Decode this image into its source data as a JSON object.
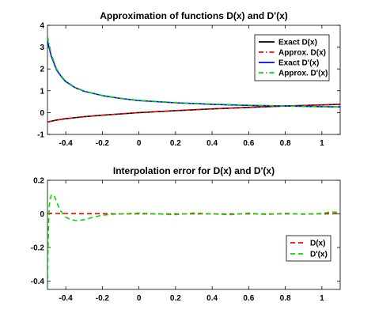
{
  "chart_data": [
    {
      "type": "line",
      "title": "Approximation of functions D(x) and D'(x)",
      "xlabel": "",
      "ylabel": "",
      "xlim": [
        -0.5,
        1.1
      ],
      "ylim": [
        -1,
        4
      ],
      "xticks": [
        -0.4,
        -0.2,
        0,
        0.2,
        0.4,
        0.6,
        0.8,
        1
      ],
      "xtick_labels": [
        "-0.4",
        "-0.2",
        "0",
        "0.2",
        "0.4",
        "0.6",
        "0.8",
        "1"
      ],
      "yticks": [
        -1,
        0,
        1,
        2,
        3,
        4
      ],
      "ytick_labels": [
        "-1",
        "0",
        "1",
        "2",
        "3",
        "4"
      ],
      "grid": false,
      "legend_position": "top-right",
      "series": [
        {
          "name": "Exact D(x)",
          "color": "#000000",
          "style": "solid",
          "x": [
            -0.5,
            -0.45,
            -0.4,
            -0.3,
            -0.2,
            -0.1,
            0,
            0.2,
            0.4,
            0.6,
            0.8,
            1.0,
            1.1
          ],
          "y": [
            -0.43,
            -0.34,
            -0.28,
            -0.19,
            -0.12,
            -0.06,
            0,
            0.09,
            0.17,
            0.24,
            0.3,
            0.35,
            0.38
          ]
        },
        {
          "name": "Approx. D(x)",
          "color": "#ff0000",
          "style": "dashdot",
          "x": [
            -0.5,
            -0.45,
            -0.4,
            -0.3,
            -0.2,
            -0.1,
            0,
            0.2,
            0.4,
            0.6,
            0.8,
            1.0,
            1.1
          ],
          "y": [
            -0.43,
            -0.34,
            -0.28,
            -0.19,
            -0.12,
            -0.06,
            0,
            0.09,
            0.17,
            0.24,
            0.3,
            0.35,
            0.38
          ]
        },
        {
          "name": "Exact D'(x)",
          "color": "#0000ff",
          "style": "solid",
          "x": [
            -0.5,
            -0.48,
            -0.45,
            -0.42,
            -0.4,
            -0.35,
            -0.3,
            -0.2,
            -0.1,
            0,
            0.2,
            0.4,
            0.6,
            0.8,
            1.0,
            1.1
          ],
          "y": [
            3.3,
            2.6,
            1.95,
            1.6,
            1.42,
            1.15,
            0.98,
            0.78,
            0.65,
            0.55,
            0.45,
            0.38,
            0.33,
            0.3,
            0.27,
            0.26
          ]
        },
        {
          "name": "Approx. D'(x)",
          "color": "#00dd00",
          "style": "dashdot",
          "x": [
            -0.5,
            -0.48,
            -0.45,
            -0.42,
            -0.4,
            -0.35,
            -0.3,
            -0.2,
            -0.1,
            0,
            0.2,
            0.4,
            0.6,
            0.8,
            1.0,
            1.1
          ],
          "y": [
            3.5,
            2.7,
            2.0,
            1.63,
            1.45,
            1.16,
            0.99,
            0.79,
            0.66,
            0.56,
            0.46,
            0.39,
            0.34,
            0.3,
            0.27,
            0.26
          ]
        }
      ]
    },
    {
      "type": "line",
      "title": "Interpolation error for D(x) and D'(x)",
      "xlabel": "",
      "ylabel": "",
      "xlim": [
        -0.5,
        1.1
      ],
      "ylim": [
        -0.45,
        0.2
      ],
      "xticks": [
        -0.4,
        -0.2,
        0,
        0.2,
        0.4,
        0.6,
        0.8,
        1
      ],
      "xtick_labels": [
        "-0.4",
        "-0.2",
        "0",
        "0.2",
        "0.4",
        "0.6",
        "0.8",
        "1"
      ],
      "yticks": [
        -0.4,
        -0.2,
        0,
        0.2
      ],
      "ytick_labels": [
        "-0.4",
        "-0.2",
        "0",
        "0.2"
      ],
      "grid": false,
      "legend_position": "bottom-right",
      "series": [
        {
          "name": "D(x)",
          "color": "#ff0000",
          "style": "dashed",
          "x": [
            -0.5,
            -0.4,
            -0.3,
            -0.2,
            -0.1,
            0,
            0.2,
            0.4,
            0.6,
            0.8,
            1.0,
            1.1
          ],
          "y": [
            0.003,
            0.002,
            0.001,
            0.001,
            0,
            0,
            0,
            0,
            0,
            0,
            0,
            0.002
          ]
        },
        {
          "name": "D'(x)",
          "color": "#00dd00",
          "style": "dashed",
          "x": [
            -0.5,
            -0.495,
            -0.49,
            -0.48,
            -0.47,
            -0.46,
            -0.45,
            -0.43,
            -0.4,
            -0.37,
            -0.34,
            -0.3,
            -0.25,
            -0.2,
            -0.15,
            -0.1,
            0,
            0.1,
            0.2,
            0.3,
            0.4,
            0.5,
            0.6,
            0.7,
            0.8,
            0.9,
            1.0,
            1.05,
            1.1
          ],
          "y": [
            -0.43,
            -0.1,
            0.05,
            0.11,
            0.115,
            0.1,
            0.07,
            0.02,
            -0.02,
            -0.035,
            -0.04,
            -0.035,
            -0.02,
            -0.008,
            -0.003,
            0.0,
            0.004,
            0.0,
            -0.005,
            0.005,
            0.0,
            -0.005,
            0.004,
            -0.004,
            0.003,
            -0.002,
            0.002,
            0.012,
            0.008
          ]
        }
      ]
    }
  ]
}
